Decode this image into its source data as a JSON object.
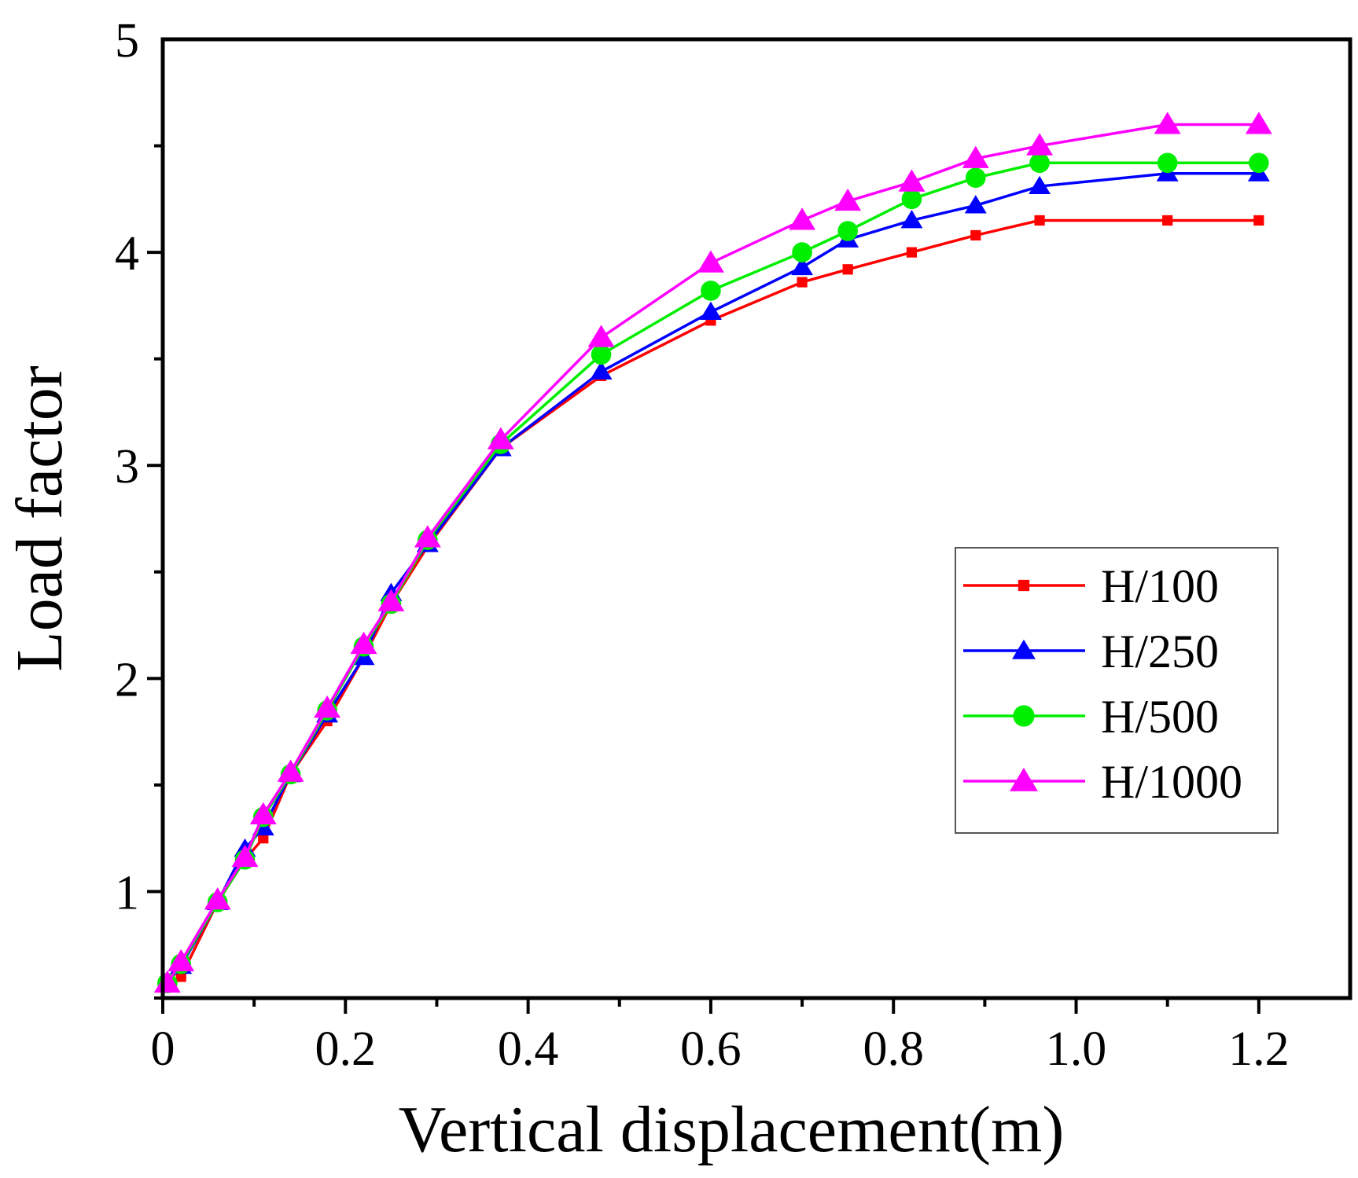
{
  "chart_data": {
    "type": "line",
    "title": "",
    "xlabel": "Vertical displacement(m)",
    "ylabel": "Load factor",
    "xlim": [
      0,
      1.3
    ],
    "ylim": [
      0.5,
      5
    ],
    "x_ticks": [
      0,
      0.2,
      0.4,
      0.6,
      0.8,
      1.0,
      1.2
    ],
    "x_tick_labels": [
      "0",
      "0.2",
      "0.4",
      "0.6",
      "0.8",
      "1.0",
      "1.2"
    ],
    "y_ticks": [
      1,
      2,
      3,
      4,
      5
    ],
    "y_tick_labels": [
      "1",
      "2",
      "3",
      "4",
      "5"
    ],
    "grid": false,
    "legend_position": "right",
    "series": [
      {
        "name": "H/100",
        "color": "#ff0000",
        "marker": "square",
        "x": [
          0.005,
          0.02,
          0.06,
          0.09,
          0.11,
          0.14,
          0.18,
          0.22,
          0.25,
          0.29,
          0.37,
          0.48,
          0.6,
          0.7,
          0.75,
          0.82,
          0.89,
          0.96,
          1.1,
          1.2
        ],
        "y": [
          0.55,
          0.6,
          0.95,
          1.15,
          1.25,
          1.55,
          1.8,
          2.1,
          2.35,
          2.62,
          3.08,
          3.42,
          3.68,
          3.86,
          3.92,
          4.0,
          4.08,
          4.15,
          4.15,
          4.15
        ]
      },
      {
        "name": "H/250",
        "color": "#0000ff",
        "marker": "triangle",
        "x": [
          0.005,
          0.02,
          0.06,
          0.09,
          0.11,
          0.14,
          0.18,
          0.22,
          0.25,
          0.29,
          0.37,
          0.48,
          0.6,
          0.7,
          0.75,
          0.82,
          0.89,
          0.96,
          1.1,
          1.2
        ],
        "y": [
          0.57,
          0.65,
          0.95,
          1.2,
          1.3,
          1.55,
          1.83,
          2.1,
          2.4,
          2.63,
          3.08,
          3.44,
          3.72,
          3.93,
          4.06,
          4.15,
          4.22,
          4.31,
          4.37,
          4.37
        ]
      },
      {
        "name": "H/500",
        "color": "#00ee00",
        "marker": "circle",
        "x": [
          0.005,
          0.02,
          0.06,
          0.09,
          0.11,
          0.14,
          0.18,
          0.22,
          0.25,
          0.29,
          0.37,
          0.48,
          0.6,
          0.7,
          0.75,
          0.82,
          0.89,
          0.96,
          1.1,
          1.2
        ],
        "y": [
          0.57,
          0.66,
          0.95,
          1.15,
          1.35,
          1.55,
          1.85,
          2.15,
          2.35,
          2.65,
          3.1,
          3.52,
          3.82,
          4.0,
          4.1,
          4.25,
          4.35,
          4.42,
          4.42,
          4.42
        ]
      },
      {
        "name": "H/1000",
        "color": "#ff00ff",
        "marker": "triangle",
        "x": [
          0.005,
          0.02,
          0.06,
          0.09,
          0.11,
          0.14,
          0.18,
          0.22,
          0.25,
          0.29,
          0.37,
          0.48,
          0.6,
          0.7,
          0.75,
          0.82,
          0.89,
          0.96,
          1.1,
          1.2
        ],
        "y": [
          0.57,
          0.67,
          0.96,
          1.16,
          1.36,
          1.56,
          1.86,
          2.16,
          2.36,
          2.66,
          3.12,
          3.6,
          3.95,
          4.15,
          4.24,
          4.33,
          4.44,
          4.5,
          4.6,
          4.6
        ]
      }
    ]
  }
}
